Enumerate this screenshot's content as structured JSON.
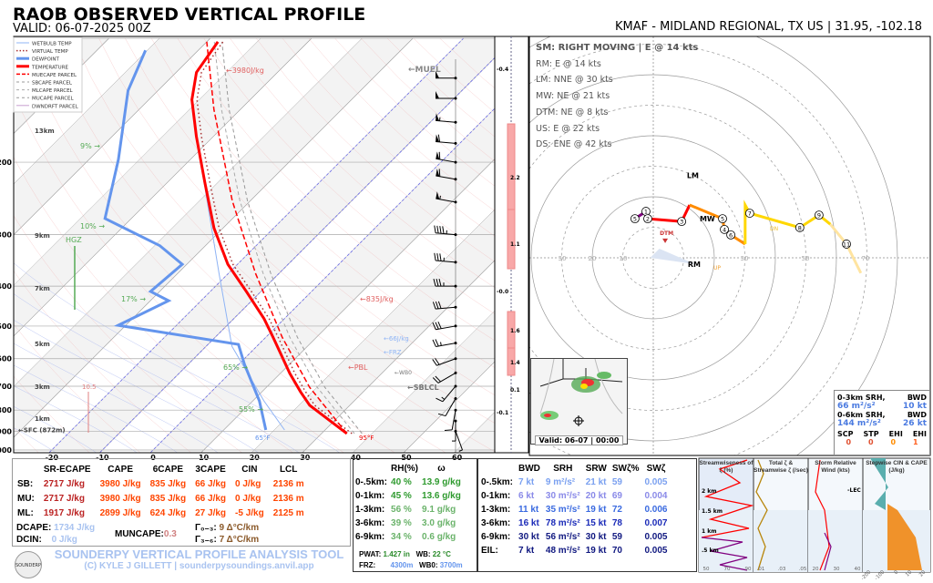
{
  "header": {
    "title": "RAOB OBSERVED VERTICAL PROFILE",
    "valid": "VALID: 06-07-2025 00Z",
    "station": "KMAF - MIDLAND REGIONAL, TX US | 31.95, -102.18"
  },
  "legend": [
    "WETBULB TEMP",
    "VIRTUAL TEMP",
    "DEWPOINT",
    "TEMPERATURE",
    "MUECAPE PARCEL",
    "SBCAPE PARCEL",
    "MLCAPE PARCEL",
    "MUCAPE PARCEL",
    "DWNDRFT PARCEL"
  ],
  "colors": {
    "temperature": "#ff0000",
    "dewpoint": "#6495ed",
    "wetbulb": "#8fb4f5",
    "parcel": "#ff0000",
    "hodo": [
      "#800080",
      "#ff0000",
      "#ff8c00",
      "#ffd700",
      "#ffe4a0"
    ]
  },
  "chart_data": [
    {
      "type": "line",
      "name": "skew-t",
      "yscale": "log",
      "ylim": [
        1000,
        100
      ],
      "xlim": [
        -20,
        60
      ],
      "pressure_ticks": [
        200,
        300,
        400,
        500,
        600,
        700,
        800,
        900,
        1000
      ],
      "temp_ticks": [
        -20,
        -10,
        0,
        10,
        20,
        30,
        40,
        50,
        60
      ],
      "height_labels": [
        {
          "text": "13km",
          "p": 170
        },
        {
          "text": "9km",
          "p": 305
        },
        {
          "text": "7km",
          "p": 410
        },
        {
          "text": "5km",
          "p": 560
        },
        {
          "text": "3km",
          "p": 710
        },
        {
          "text": "1km",
          "p": 850
        },
        {
          "text": "←SFC (872m)",
          "p": 905
        }
      ],
      "series": [
        {
          "name": "TEMPERATURE",
          "points": [
            [
              912,
              35
            ],
            [
              779,
              22.1
            ],
            [
              722,
              17.6
            ],
            [
              652,
              11.9
            ],
            [
              532,
              1.4
            ],
            [
              480,
              -4
            ],
            [
              412,
              -12.9
            ],
            [
              354,
              -21.9
            ],
            [
              289,
              -31.8
            ],
            [
              224,
              -42.6
            ],
            [
              173,
              -53.4
            ],
            [
              141,
              -61.5
            ],
            [
              121,
              -66
            ],
            [
              102,
              -67.8
            ]
          ]
        },
        {
          "name": "DEWPOINT",
          "points": [
            [
              894,
              18.3
            ],
            [
              760,
              11.3
            ],
            [
              619,
              1.1
            ],
            [
              554,
              -4
            ],
            [
              498,
              -31.5
            ],
            [
              434,
              -26.4
            ],
            [
              412,
              -31.8
            ],
            [
              354,
              -30.9
            ],
            [
              319,
              -39
            ],
            [
              274,
              -55.2
            ],
            [
              197,
              -64.2
            ],
            [
              134,
              -75.9
            ],
            [
              107,
              -80.4
            ]
          ]
        },
        {
          "name": "WETBULB TEMP",
          "points": [
            [
              894,
              22
            ],
            [
              760,
              12.2
            ],
            [
              560,
              -4.9
            ],
            [
              372,
              -21.9
            ],
            [
              202,
              -47
            ]
          ]
        },
        {
          "name": "MUECAPE PARCEL",
          "points": [
            [
              912,
              35
            ],
            [
              704,
              18.5
            ],
            [
              532,
              3.2
            ],
            [
              372,
              -14.7
            ],
            [
              248,
              -33.6
            ],
            [
              149,
              -55.2
            ],
            [
              102,
              -70
            ]
          ]
        }
      ],
      "annotations": [
        "←3980J/kg",
        "←MUEL",
        "←835J/kg",
        "←66J/kg",
        "←FRZ",
        "←WB0",
        "←PBL",
        "←SBLCL",
        "95°F",
        "65°F",
        "HGZ",
        "9% →",
        "10% →",
        "17% →",
        "65% →",
        "55% →",
        "10.5"
      ],
      "winds": [
        [
          900,
          200,
          5
        ],
        [
          850,
          180,
          8
        ],
        [
          800,
          170,
          12
        ],
        [
          750,
          150,
          14
        ],
        [
          700,
          140,
          18
        ],
        [
          650,
          120,
          22
        ],
        [
          600,
          110,
          24
        ],
        [
          550,
          100,
          26
        ],
        [
          500,
          100,
          30
        ],
        [
          450,
          95,
          32
        ],
        [
          400,
          90,
          35
        ],
        [
          350,
          85,
          38
        ],
        [
          300,
          85,
          45
        ],
        [
          250,
          80,
          55
        ],
        [
          220,
          80,
          60
        ],
        [
          200,
          80,
          62
        ],
        [
          180,
          85,
          60
        ],
        [
          160,
          85,
          55
        ],
        [
          140,
          90,
          50
        ],
        [
          125,
          90,
          52
        ]
      ],
      "bar_column": {
        "labels": [
          "-0.4",
          "2.2",
          "1.1",
          "-0.0",
          "1.6",
          "1.4",
          "0.1",
          "-0.1"
        ]
      }
    },
    {
      "type": "line",
      "name": "hodograph",
      "units": "kt",
      "rings": [
        10,
        20,
        30,
        40,
        50,
        60,
        70,
        80
      ],
      "ring_labels": [
        "10",
        "20",
        "30",
        "30",
        "50",
        "70"
      ],
      "path": [
        [
          -6,
          12.8
        ],
        [
          -2.4,
          15.2
        ],
        [
          -1.8,
          12.8
        ],
        [
          9.3,
          11.9
        ],
        [
          11.9,
          17.3
        ],
        [
          22.7,
          12.8
        ],
        [
          23.3,
          9.3
        ],
        [
          25.4,
          7.5
        ],
        [
          30.1,
          4.5
        ],
        [
          30.1,
          17.3
        ],
        [
          31.6,
          14.6
        ],
        [
          48,
          9.9
        ],
        [
          54.3,
          14
        ],
        [
          58,
          11
        ],
        [
          63.3,
          4.5
        ],
        [
          68,
          -5
        ]
      ],
      "km_labels": [
        {
          "k": "5",
          "u": -6,
          "v": 12.8
        },
        {
          "k": "1",
          "u": -2.4,
          "v": 15.2
        },
        {
          "k": "2",
          "u": -1.8,
          "v": 12.8
        },
        {
          "k": "3",
          "u": 9.3,
          "v": 11.9
        },
        {
          "k": "4",
          "u": 23.3,
          "v": 9.3
        },
        {
          "k": "5",
          "u": 22.7,
          "v": 12.8
        },
        {
          "k": "6",
          "u": 25.4,
          "v": 7.5
        },
        {
          "k": "7",
          "u": 31.6,
          "v": 14.6
        },
        {
          "k": "8",
          "u": 48,
          "v": 9.9
        },
        {
          "k": "9",
          "u": 54.3,
          "v": 14
        },
        {
          "k": "11",
          "u": 63.3,
          "v": 4.5
        }
      ],
      "motions": [
        {
          "label": "RM",
          "u": 13.7,
          "v": -2.1
        },
        {
          "label": "LM",
          "u": 12.8,
          "v": 27
        },
        {
          "label": "MW",
          "u": 18.2,
          "v": 12.8
        },
        {
          "label": "DTM",
          "u": 3.9,
          "v": 7.5
        }
      ],
      "extra_labels": [
        "UP",
        "DN"
      ]
    }
  ],
  "storm_motion": {
    "header": "SM: RIGHT MOVING | E @ 14 kts",
    "items": [
      "RM: E @ 14 kts",
      "LM: NNE @ 30 kts",
      "MW: NE @ 21 kts",
      "DTM: NE @ 8 kts",
      "US: E @ 22 kts",
      "DS: ENE @ 42 kts"
    ]
  },
  "srh_box": {
    "l1": "0-3km SRH,",
    "l1b": "BWD",
    "v1": "66 m²/s²",
    "v1b": "10 kt",
    "l2": "0-6km SRH,",
    "l2b": "BWD",
    "v2": "144 m²/s²",
    "v2b": "26 kt",
    "heads": [
      "SCP",
      "STP",
      "EHI",
      "EHI"
    ],
    "vals": [
      "0",
      "0",
      "0",
      "1"
    ]
  },
  "map": {
    "caption": "Valid: 06-07 | 00:00"
  },
  "thermo": {
    "headers": [
      "",
      "SR-ECAPE",
      "CAPE",
      "6CAPE",
      "3CAPE",
      "CIN",
      "LCL"
    ],
    "rows": [
      [
        "SB:",
        "2717 J/kg",
        "3980 J/kg",
        "835 J/kg",
        "66 J/kg",
        "0 J/kg",
        "2136 m"
      ],
      [
        "MU:",
        "2717 J/kg",
        "3980 J/kg",
        "835 J/kg",
        "66 J/kg",
        "0 J/kg",
        "2136 m"
      ],
      [
        "ML:",
        "1917 J/kg",
        "2899 J/kg",
        "624 J/kg",
        "27 J/kg",
        "-5 J/kg",
        "2125 m"
      ]
    ],
    "dcape_label": "DCAPE:",
    "dcape": "1734 J/kg",
    "dcin_label": "DCIN:",
    "dcin": "0 J/kg",
    "muncape_label": "MUNCAPE:",
    "muncape": "0.3",
    "lr03_label": "Γ₀₋₃:",
    "lr03": "9 Δ°C/km",
    "lr36_label": "Γ₃₋₆:",
    "lr36": "7 Δ°C/km"
  },
  "moisture": {
    "headers": [
      "",
      "RH(%)",
      "ω"
    ],
    "rows": [
      [
        "0-.5km:",
        "40 %",
        "13.9 g/kg"
      ],
      [
        "0-1km:",
        "45 %",
        "13.6 g/kg"
      ],
      [
        "1-3km:",
        "56 %",
        "9.1 g/kg"
      ],
      [
        "3-6km:",
        "39 %",
        "3.0 g/kg"
      ],
      [
        "6-9km:",
        "34 %",
        "0.6 g/kg"
      ]
    ],
    "pwat_label": "PWAT:",
    "pwat": "1.427 in",
    "wb_label": "WB:",
    "wb": "22 °C",
    "frz_label": "FRZ:",
    "frz": "4300m",
    "wb0_label": "WB0:",
    "wb0": "3700m"
  },
  "kinematics": {
    "headers": [
      "",
      "BWD",
      "SRH",
      "SRW",
      "SWζ%",
      "SWζ"
    ],
    "rows": [
      [
        "0-.5km:",
        "7 kt",
        "9 m²/s²",
        "21 kt",
        "59",
        "0.005"
      ],
      [
        "0-1km:",
        "6 kt",
        "30 m²/s²",
        "20 kt",
        "69",
        "0.004"
      ],
      [
        "1-3km:",
        "11 kt",
        "35 m²/s²",
        "19 kt",
        "72",
        "0.006"
      ],
      [
        "3-6km:",
        "16 kt",
        "78 m²/s²",
        "15 kt",
        "78",
        "0.007"
      ],
      [
        "6-9km:",
        "30 kt",
        "56 m²/s²",
        "30 kt",
        "59",
        "0.005"
      ],
      [
        "EIL:",
        "7 kt",
        "48 m²/s²",
        "19 kt",
        "70",
        "0.005"
      ]
    ]
  },
  "panels": {
    "p1": "Streamwiseness of ζ (%)",
    "p1ticks": [
      "50",
      "70",
      "90"
    ],
    "p1km": [
      "2 km",
      "1.5 km",
      "1 km",
      ".5 km"
    ],
    "p2": "Total ζ & Streamwise ζ (/sec)",
    "p2ticks": [
      ".01",
      ".03",
      ".05"
    ],
    "p3": "Storm Relative Wind (kts)",
    "p3ticks": [
      "20",
      "30",
      "40"
    ],
    "p3lec": "-LEC",
    "p4": "Stepwise CIN & CAPE (J/kg)",
    "p4ticks": [
      "-200",
      "-100",
      "0",
      "10",
      "20"
    ]
  },
  "brand": {
    "title": "SOUNDERPY VERTICAL PROFILE ANALYSIS TOOL",
    "sub": "(C) KYLE J GILLETT | sounderpysoundings.anvil.app",
    "logo": "SOUNDERPY"
  }
}
